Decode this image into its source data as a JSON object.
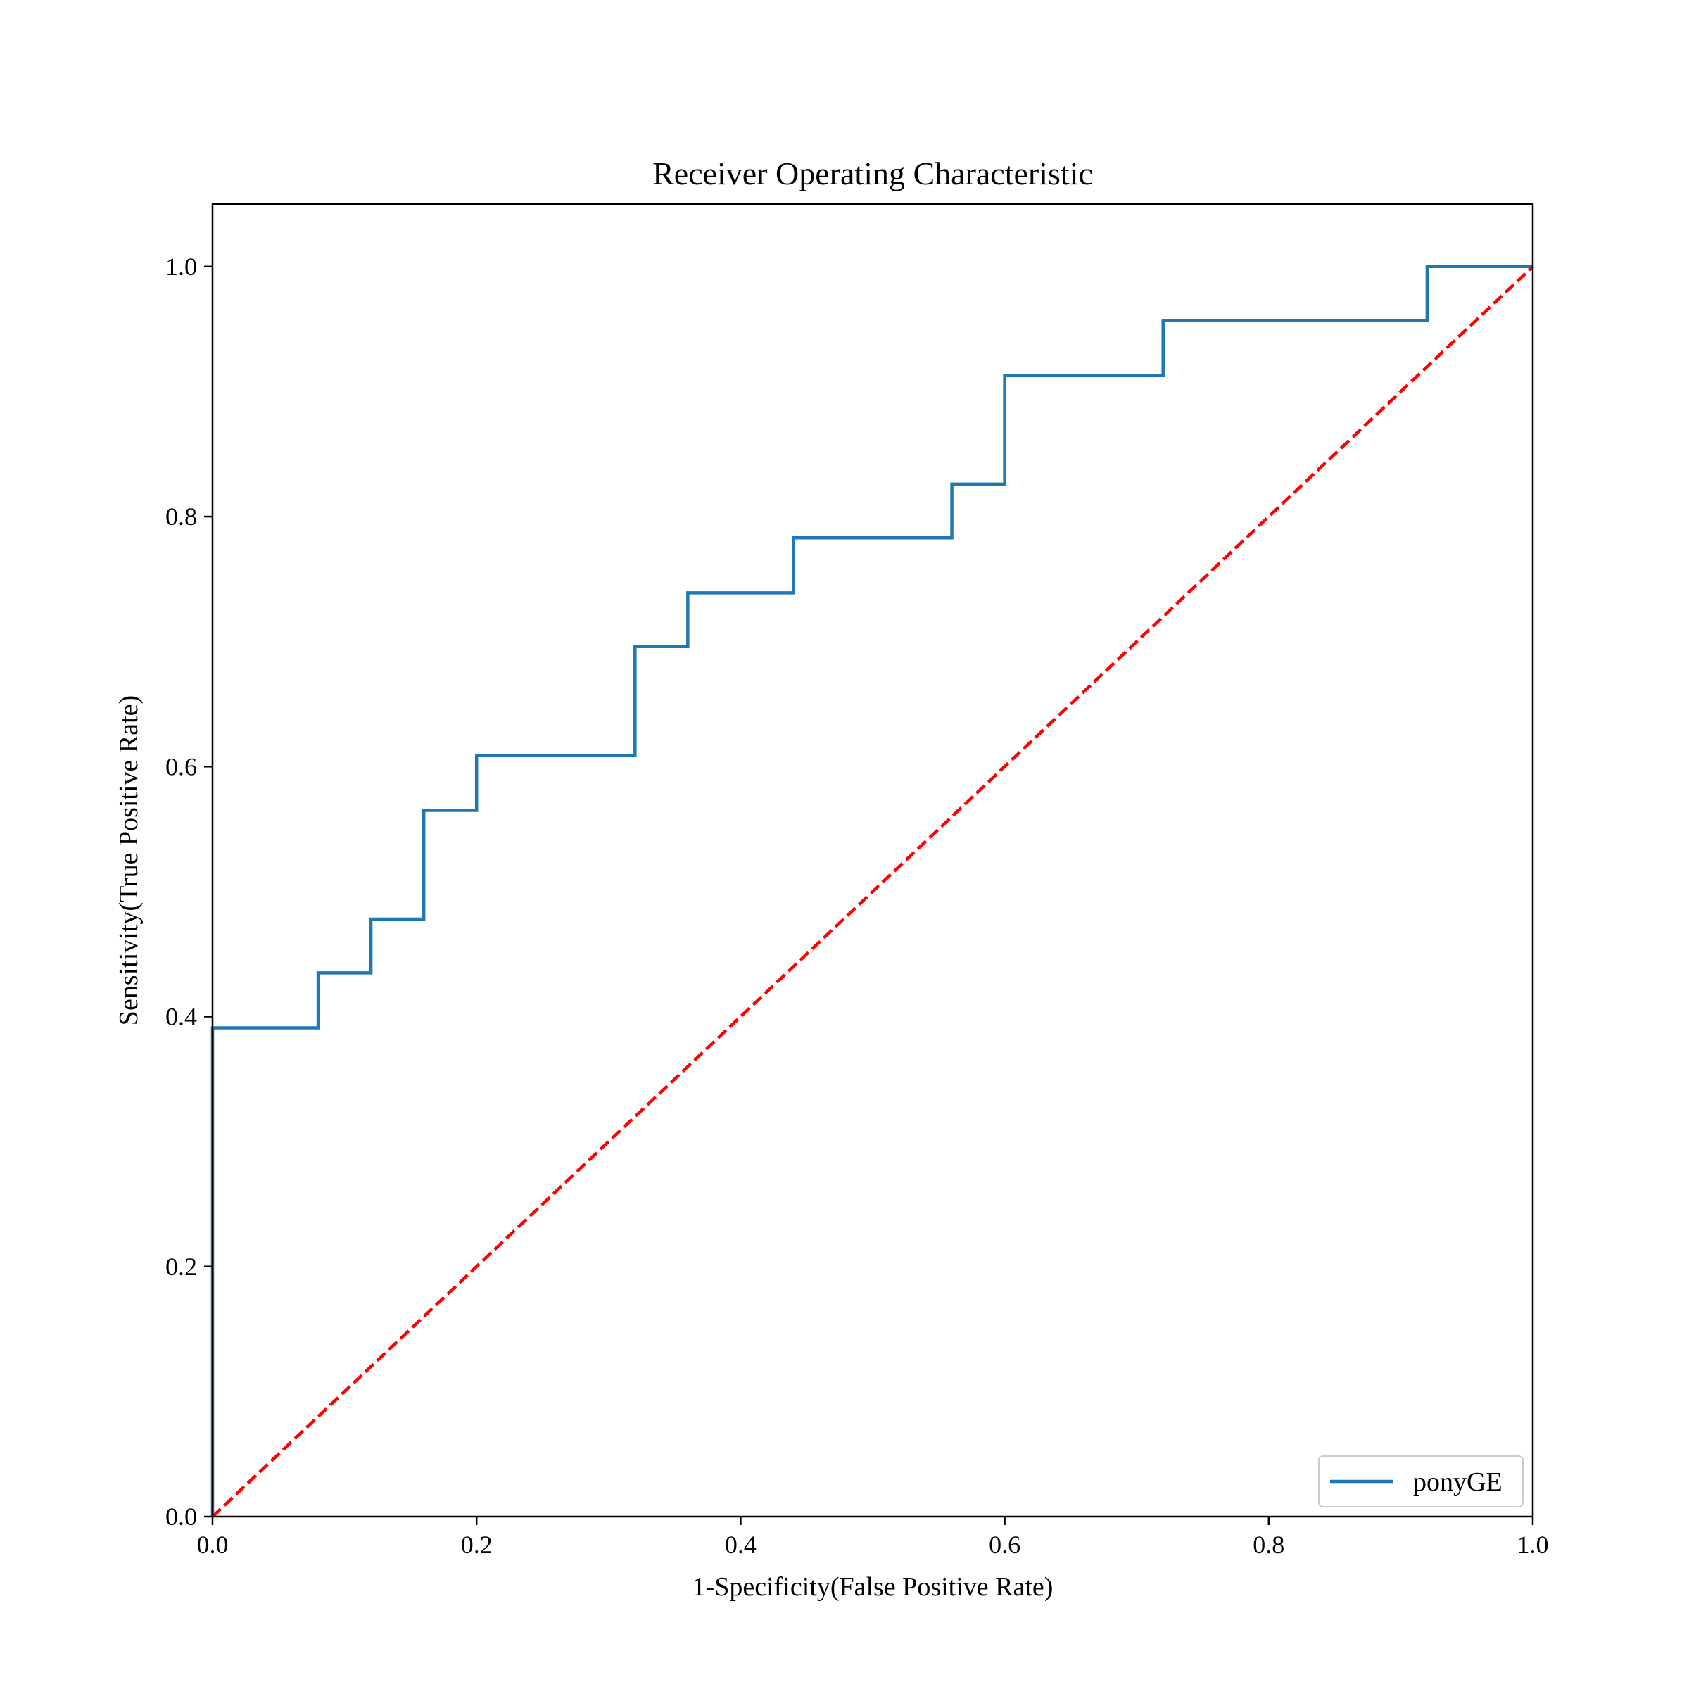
{
  "chart_data": {
    "type": "line",
    "title": "Receiver Operating Characteristic",
    "xlabel": "1-Specificity(False Positive Rate)",
    "ylabel": "Sensitivity(True Positive Rate)",
    "xlim": [
      0.0,
      1.0
    ],
    "ylim": [
      0.0,
      1.05
    ],
    "xticks": [
      "0.0",
      "0.2",
      "0.4",
      "0.6",
      "0.8",
      "1.0"
    ],
    "yticks": [
      "0.0",
      "0.2",
      "0.4",
      "0.6",
      "0.8",
      "1.0"
    ],
    "grid": false,
    "legend": {
      "position": "lower-right"
    },
    "series": [
      {
        "name": "ponyGE",
        "color": "#1f77b4",
        "style": "solid",
        "x": [
          0.0,
          0.0,
          0.0,
          0.08,
          0.08,
          0.12,
          0.12,
          0.16,
          0.16,
          0.2,
          0.2,
          0.32,
          0.32,
          0.36,
          0.36,
          0.44,
          0.44,
          0.56,
          0.56,
          0.6,
          0.6,
          0.72,
          0.72,
          0.92,
          0.92,
          1.0
        ],
        "y": [
          0.0,
          0.0,
          0.391,
          0.391,
          0.435,
          0.435,
          0.478,
          0.478,
          0.565,
          0.565,
          0.609,
          0.609,
          0.696,
          0.696,
          0.739,
          0.739,
          0.783,
          0.783,
          0.826,
          0.826,
          0.913,
          0.913,
          0.957,
          0.957,
          1.0,
          1.0
        ]
      },
      {
        "color": "#ff0000",
        "style": "dashed",
        "x": [
          0.0,
          1.0
        ],
        "y": [
          0.0,
          1.0
        ]
      }
    ]
  }
}
